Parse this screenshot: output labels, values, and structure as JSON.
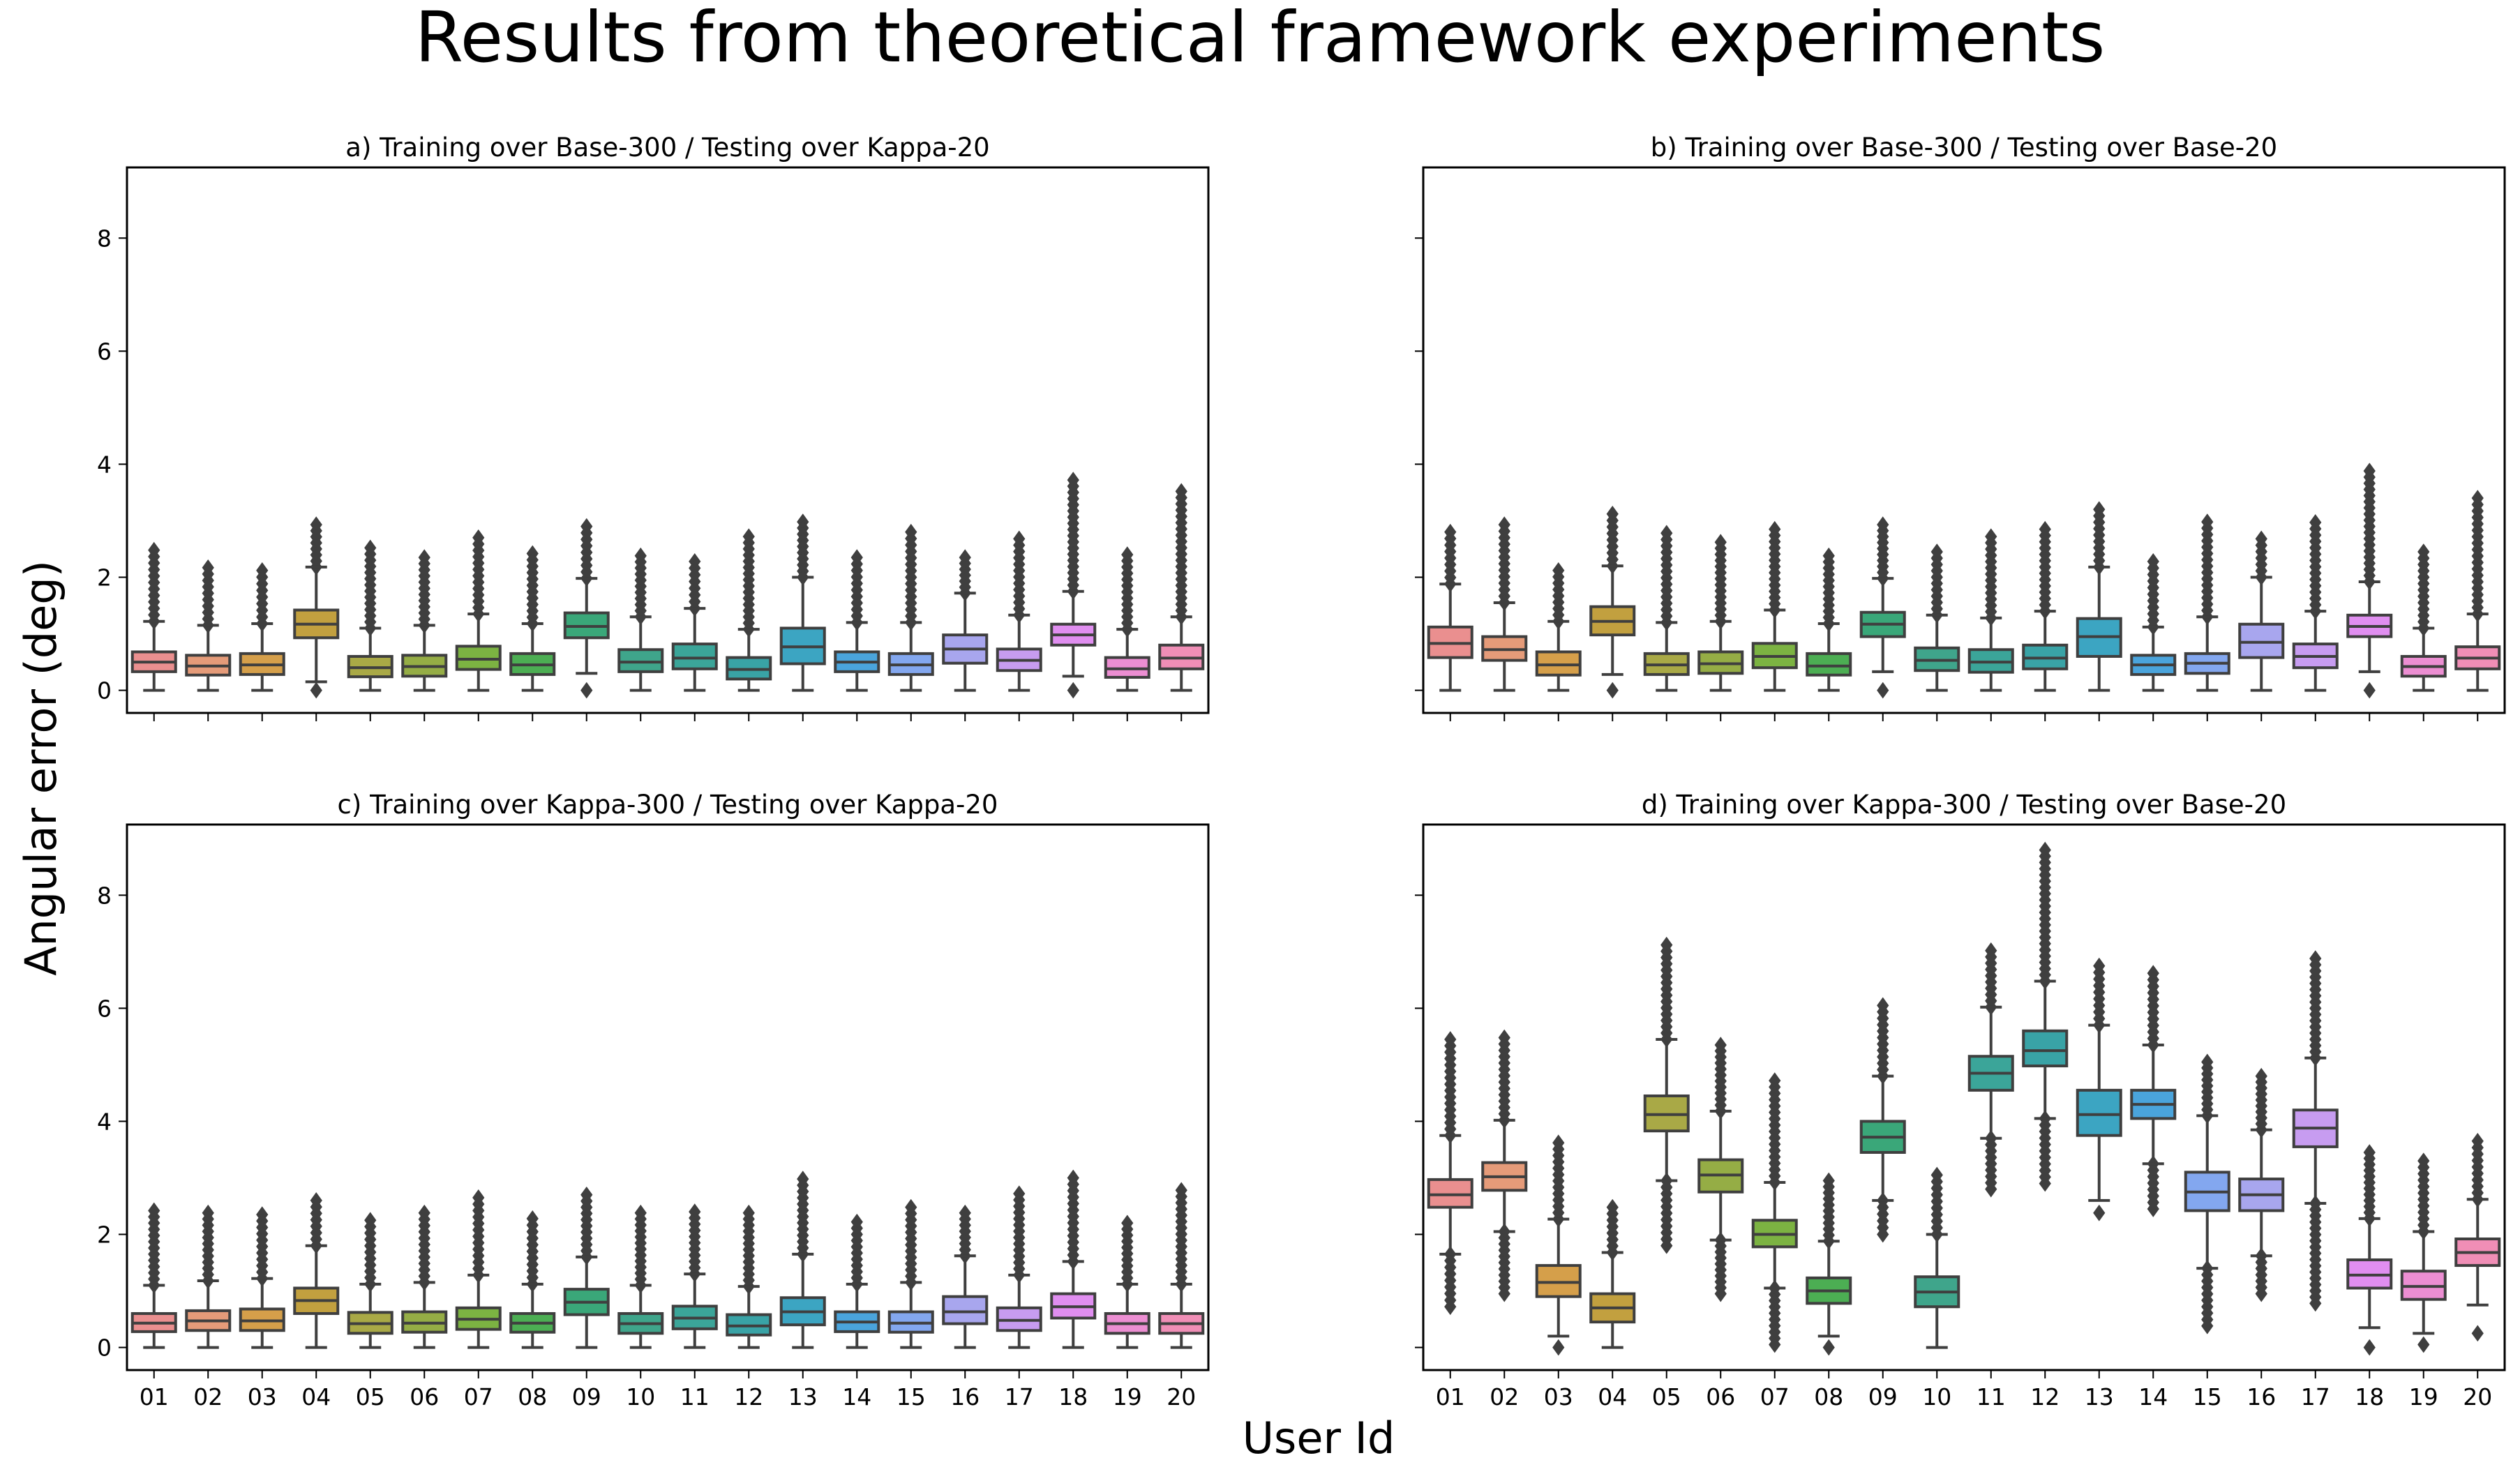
{
  "figure": {
    "title": "Results from theoretical framework experiments",
    "xlabel": "User Id",
    "ylabel": "Angular error (deg)"
  },
  "chart_data": [
    {
      "type": "box",
      "title": "a) Training over Base-300 / Testing over Kappa-20",
      "categories": [
        "01",
        "02",
        "03",
        "04",
        "05",
        "06",
        "07",
        "08",
        "09",
        "10",
        "11",
        "12",
        "13",
        "14",
        "15",
        "16",
        "17",
        "18",
        "19",
        "20"
      ],
      "ylim": [
        -0.4,
        9.25
      ],
      "yticks": [
        0,
        2,
        4,
        6,
        8
      ],
      "colors": [
        "#ea8f8f",
        "#e59b79",
        "#d59f4a",
        "#c2a03f",
        "#a9a946",
        "#95ad45",
        "#7cb342",
        "#4cae53",
        "#3aa779",
        "#3fa58b",
        "#3ba599",
        "#39a3a6",
        "#3ca5c2",
        "#4aa4dc",
        "#83a7ef",
        "#a8a6ee",
        "#c79cf0",
        "#e08ef0",
        "#ec8ed2",
        "#f08eb6"
      ],
      "boxes": [
        {
          "whislo": 0.0,
          "q1": 0.33,
          "med": 0.5,
          "q3": 0.68,
          "whishi": 1.22,
          "flier_max": 2.48
        },
        {
          "whislo": 0.0,
          "q1": 0.27,
          "med": 0.43,
          "q3": 0.62,
          "whishi": 1.15,
          "flier_max": 2.17
        },
        {
          "whislo": 0.0,
          "q1": 0.28,
          "med": 0.45,
          "q3": 0.65,
          "whishi": 1.18,
          "flier_max": 2.12
        },
        {
          "whislo": 0.15,
          "q1": 0.93,
          "med": 1.17,
          "q3": 1.42,
          "whishi": 2.18,
          "flier_max": 2.93,
          "flier_min": 0.0
        },
        {
          "whislo": 0.0,
          "q1": 0.24,
          "med": 0.4,
          "q3": 0.6,
          "whishi": 1.1,
          "flier_max": 2.52
        },
        {
          "whislo": 0.0,
          "q1": 0.25,
          "med": 0.42,
          "q3": 0.62,
          "whishi": 1.15,
          "flier_max": 2.35
        },
        {
          "whislo": 0.0,
          "q1": 0.37,
          "med": 0.55,
          "q3": 0.78,
          "whishi": 1.35,
          "flier_max": 2.7
        },
        {
          "whislo": 0.0,
          "q1": 0.28,
          "med": 0.45,
          "q3": 0.65,
          "whishi": 1.18,
          "flier_max": 2.42
        },
        {
          "whislo": 0.3,
          "q1": 0.93,
          "med": 1.13,
          "q3": 1.37,
          "whishi": 1.98,
          "flier_max": 2.9,
          "flier_min": 0.0
        },
        {
          "whislo": 0.0,
          "q1": 0.33,
          "med": 0.5,
          "q3": 0.72,
          "whishi": 1.3,
          "flier_max": 2.38
        },
        {
          "whislo": 0.0,
          "q1": 0.38,
          "med": 0.57,
          "q3": 0.82,
          "whishi": 1.45,
          "flier_max": 2.28
        },
        {
          "whislo": 0.0,
          "q1": 0.2,
          "med": 0.37,
          "q3": 0.58,
          "whishi": 1.08,
          "flier_max": 2.72
        },
        {
          "whislo": 0.0,
          "q1": 0.47,
          "med": 0.77,
          "q3": 1.1,
          "whishi": 2.0,
          "flier_max": 2.98
        },
        {
          "whislo": 0.0,
          "q1": 0.33,
          "med": 0.5,
          "q3": 0.68,
          "whishi": 1.2,
          "flier_max": 2.35
        },
        {
          "whislo": 0.0,
          "q1": 0.28,
          "med": 0.45,
          "q3": 0.65,
          "whishi": 1.2,
          "flier_max": 2.8
        },
        {
          "whislo": 0.0,
          "q1": 0.48,
          "med": 0.73,
          "q3": 0.98,
          "whishi": 1.72,
          "flier_max": 2.35
        },
        {
          "whislo": 0.0,
          "q1": 0.35,
          "med": 0.53,
          "q3": 0.73,
          "whishi": 1.33,
          "flier_max": 2.68
        },
        {
          "whislo": 0.25,
          "q1": 0.8,
          "med": 0.98,
          "q3": 1.17,
          "whishi": 1.75,
          "flier_max": 3.72,
          "flier_min": 0.0
        },
        {
          "whislo": 0.0,
          "q1": 0.23,
          "med": 0.38,
          "q3": 0.58,
          "whishi": 1.08,
          "flier_max": 2.4
        },
        {
          "whislo": 0.0,
          "q1": 0.38,
          "med": 0.57,
          "q3": 0.8,
          "whishi": 1.3,
          "flier_max": 3.52
        }
      ]
    },
    {
      "type": "box",
      "title": "b) Training over Base-300 / Testing over Base-20",
      "categories": [
        "01",
        "02",
        "03",
        "04",
        "05",
        "06",
        "07",
        "08",
        "09",
        "10",
        "11",
        "12",
        "13",
        "14",
        "15",
        "16",
        "17",
        "18",
        "19",
        "20"
      ],
      "ylim": [
        -0.4,
        9.25
      ],
      "yticks": [
        0,
        2,
        4,
        6,
        8
      ],
      "colors": [
        "#ea8f8f",
        "#e59b79",
        "#d59f4a",
        "#c2a03f",
        "#a9a946",
        "#95ad45",
        "#7cb342",
        "#4cae53",
        "#3aa779",
        "#3fa58b",
        "#3ba599",
        "#39a3a6",
        "#3ca5c2",
        "#4aa4dc",
        "#83a7ef",
        "#a8a6ee",
        "#c79cf0",
        "#e08ef0",
        "#ec8ed2",
        "#f08eb6"
      ],
      "boxes": [
        {
          "whislo": 0.0,
          "q1": 0.58,
          "med": 0.83,
          "q3": 1.12,
          "whishi": 1.88,
          "flier_max": 2.8
        },
        {
          "whislo": 0.0,
          "q1": 0.53,
          "med": 0.72,
          "q3": 0.95,
          "whishi": 1.55,
          "flier_max": 2.93
        },
        {
          "whislo": 0.0,
          "q1": 0.27,
          "med": 0.45,
          "q3": 0.68,
          "whishi": 1.22,
          "flier_max": 2.12
        },
        {
          "whislo": 0.28,
          "q1": 0.98,
          "med": 1.22,
          "q3": 1.48,
          "whishi": 2.2,
          "flier_max": 3.12,
          "flier_min": 0.0
        },
        {
          "whislo": 0.0,
          "q1": 0.28,
          "med": 0.45,
          "q3": 0.65,
          "whishi": 1.2,
          "flier_max": 2.78
        },
        {
          "whislo": 0.0,
          "q1": 0.3,
          "med": 0.47,
          "q3": 0.68,
          "whishi": 1.22,
          "flier_max": 2.62
        },
        {
          "whislo": 0.0,
          "q1": 0.4,
          "med": 0.6,
          "q3": 0.83,
          "whishi": 1.42,
          "flier_max": 2.85
        },
        {
          "whislo": 0.0,
          "q1": 0.27,
          "med": 0.43,
          "q3": 0.65,
          "whishi": 1.18,
          "flier_max": 2.38
        },
        {
          "whislo": 0.33,
          "q1": 0.95,
          "med": 1.17,
          "q3": 1.38,
          "whishi": 1.98,
          "flier_max": 2.93,
          "flier_min": 0.0
        },
        {
          "whislo": 0.0,
          "q1": 0.35,
          "med": 0.53,
          "q3": 0.75,
          "whishi": 1.33,
          "flier_max": 2.45
        },
        {
          "whislo": 0.0,
          "q1": 0.32,
          "med": 0.5,
          "q3": 0.72,
          "whishi": 1.28,
          "flier_max": 2.72
        },
        {
          "whislo": 0.0,
          "q1": 0.38,
          "med": 0.57,
          "q3": 0.8,
          "whishi": 1.4,
          "flier_max": 2.85
        },
        {
          "whislo": 0.0,
          "q1": 0.6,
          "med": 0.95,
          "q3": 1.27,
          "whishi": 2.18,
          "flier_max": 3.2
        },
        {
          "whislo": 0.0,
          "q1": 0.28,
          "med": 0.45,
          "q3": 0.62,
          "whishi": 1.12,
          "flier_max": 2.28
        },
        {
          "whislo": 0.0,
          "q1": 0.3,
          "med": 0.48,
          "q3": 0.65,
          "whishi": 1.3,
          "flier_max": 2.98
        },
        {
          "whislo": 0.0,
          "q1": 0.58,
          "med": 0.85,
          "q3": 1.17,
          "whishi": 2.0,
          "flier_max": 2.68
        },
        {
          "whislo": 0.0,
          "q1": 0.4,
          "med": 0.6,
          "q3": 0.82,
          "whishi": 1.4,
          "flier_max": 2.97
        },
        {
          "whislo": 0.33,
          "q1": 0.95,
          "med": 1.13,
          "q3": 1.33,
          "whishi": 1.92,
          "flier_max": 3.88,
          "flier_min": 0.0
        },
        {
          "whislo": 0.0,
          "q1": 0.25,
          "med": 0.42,
          "q3": 0.6,
          "whishi": 1.1,
          "flier_max": 2.45
        },
        {
          "whislo": 0.0,
          "q1": 0.38,
          "med": 0.57,
          "q3": 0.77,
          "whishi": 1.35,
          "flier_max": 3.4
        }
      ]
    },
    {
      "type": "box",
      "title": "c) Training over Kappa-300 / Testing over Kappa-20",
      "categories": [
        "01",
        "02",
        "03",
        "04",
        "05",
        "06",
        "07",
        "08",
        "09",
        "10",
        "11",
        "12",
        "13",
        "14",
        "15",
        "16",
        "17",
        "18",
        "19",
        "20"
      ],
      "ylim": [
        -0.4,
        9.25
      ],
      "yticks": [
        0,
        2,
        4,
        6,
        8
      ],
      "colors": [
        "#ea8f8f",
        "#e59b79",
        "#d59f4a",
        "#c2a03f",
        "#a9a946",
        "#95ad45",
        "#7cb342",
        "#4cae53",
        "#3aa779",
        "#3fa58b",
        "#3ba599",
        "#39a3a6",
        "#3ca5c2",
        "#4aa4dc",
        "#83a7ef",
        "#a8a6ee",
        "#c79cf0",
        "#e08ef0",
        "#ec8ed2",
        "#f08eb6"
      ],
      "boxes": [
        {
          "whislo": 0.0,
          "q1": 0.28,
          "med": 0.43,
          "q3": 0.6,
          "whishi": 1.1,
          "flier_max": 2.42
        },
        {
          "whislo": 0.0,
          "q1": 0.3,
          "med": 0.47,
          "q3": 0.65,
          "whishi": 1.18,
          "flier_max": 2.38
        },
        {
          "whislo": 0.0,
          "q1": 0.3,
          "med": 0.47,
          "q3": 0.68,
          "whishi": 1.22,
          "flier_max": 2.35
        },
        {
          "whislo": 0.0,
          "q1": 0.6,
          "med": 0.83,
          "q3": 1.05,
          "whishi": 1.8,
          "flier_max": 2.6
        },
        {
          "whislo": 0.0,
          "q1": 0.25,
          "med": 0.42,
          "q3": 0.62,
          "whishi": 1.12,
          "flier_max": 2.25
        },
        {
          "whislo": 0.0,
          "q1": 0.27,
          "med": 0.43,
          "q3": 0.63,
          "whishi": 1.15,
          "flier_max": 2.38
        },
        {
          "whislo": 0.0,
          "q1": 0.32,
          "med": 0.5,
          "q3": 0.7,
          "whishi": 1.28,
          "flier_max": 2.65
        },
        {
          "whislo": 0.0,
          "q1": 0.27,
          "med": 0.43,
          "q3": 0.6,
          "whishi": 1.12,
          "flier_max": 2.28
        },
        {
          "whislo": 0.0,
          "q1": 0.58,
          "med": 0.8,
          "q3": 1.03,
          "whishi": 1.6,
          "flier_max": 2.7
        },
        {
          "whislo": 0.0,
          "q1": 0.25,
          "med": 0.42,
          "q3": 0.6,
          "whishi": 1.1,
          "flier_max": 2.38
        },
        {
          "whislo": 0.0,
          "q1": 0.33,
          "med": 0.52,
          "q3": 0.73,
          "whishi": 1.3,
          "flier_max": 2.4
        },
        {
          "whislo": 0.0,
          "q1": 0.22,
          "med": 0.38,
          "q3": 0.58,
          "whishi": 1.08,
          "flier_max": 2.38
        },
        {
          "whislo": 0.0,
          "q1": 0.4,
          "med": 0.63,
          "q3": 0.88,
          "whishi": 1.65,
          "flier_max": 2.98
        },
        {
          "whislo": 0.0,
          "q1": 0.28,
          "med": 0.45,
          "q3": 0.63,
          "whishi": 1.12,
          "flier_max": 2.22
        },
        {
          "whislo": 0.0,
          "q1": 0.27,
          "med": 0.43,
          "q3": 0.63,
          "whishi": 1.15,
          "flier_max": 2.48
        },
        {
          "whislo": 0.0,
          "q1": 0.42,
          "med": 0.63,
          "q3": 0.9,
          "whishi": 1.62,
          "flier_max": 2.38
        },
        {
          "whislo": 0.0,
          "q1": 0.3,
          "med": 0.48,
          "q3": 0.7,
          "whishi": 1.28,
          "flier_max": 2.72
        },
        {
          "whislo": 0.0,
          "q1": 0.52,
          "med": 0.72,
          "q3": 0.95,
          "whishi": 1.52,
          "flier_max": 3.0
        },
        {
          "whislo": 0.0,
          "q1": 0.25,
          "med": 0.42,
          "q3": 0.6,
          "whishi": 1.12,
          "flier_max": 2.2
        },
        {
          "whislo": 0.0,
          "q1": 0.25,
          "med": 0.42,
          "q3": 0.6,
          "whishi": 1.12,
          "flier_max": 2.78
        }
      ]
    },
    {
      "type": "box",
      "title": "d) Training over Kappa-300 / Testing over Base-20",
      "categories": [
        "01",
        "02",
        "03",
        "04",
        "05",
        "06",
        "07",
        "08",
        "09",
        "10",
        "11",
        "12",
        "13",
        "14",
        "15",
        "16",
        "17",
        "18",
        "19",
        "20"
      ],
      "ylim": [
        -0.4,
        9.25
      ],
      "yticks": [
        0,
        2,
        4,
        6,
        8
      ],
      "colors": [
        "#ea8f8f",
        "#e59b79",
        "#d59f4a",
        "#c2a03f",
        "#a9a946",
        "#95ad45",
        "#7cb342",
        "#4cae53",
        "#3aa779",
        "#3fa58b",
        "#3ba599",
        "#39a3a6",
        "#3ca5c2",
        "#4aa4dc",
        "#83a7ef",
        "#a8a6ee",
        "#c79cf0",
        "#e08ef0",
        "#ec8ed2",
        "#f08eb6"
      ],
      "boxes": [
        {
          "whislo": 1.65,
          "q1": 2.48,
          "med": 2.7,
          "q3": 2.97,
          "whishi": 3.75,
          "flier_max": 5.45,
          "flier_min": 0.72
        },
        {
          "whislo": 2.05,
          "q1": 2.78,
          "med": 3.02,
          "q3": 3.27,
          "whishi": 4.02,
          "flier_max": 5.48,
          "flier_min": 0.95
        },
        {
          "whislo": 0.2,
          "q1": 0.9,
          "med": 1.15,
          "q3": 1.45,
          "whishi": 2.27,
          "flier_max": 3.62,
          "flier_min": 0.0
        },
        {
          "whislo": 0.0,
          "q1": 0.45,
          "med": 0.7,
          "q3": 0.95,
          "whishi": 1.68,
          "flier_max": 2.48
        },
        {
          "whislo": 2.95,
          "q1": 3.83,
          "med": 4.12,
          "q3": 4.45,
          "whishi": 5.45,
          "flier_max": 7.12,
          "flier_min": 1.8
        },
        {
          "whislo": 1.9,
          "q1": 2.75,
          "med": 3.05,
          "q3": 3.32,
          "whishi": 4.18,
          "flier_max": 5.35,
          "flier_min": 0.95
        },
        {
          "whislo": 1.05,
          "q1": 1.78,
          "med": 2.0,
          "q3": 2.25,
          "whishi": 2.92,
          "flier_max": 4.72,
          "flier_min": 0.05
        },
        {
          "whislo": 0.2,
          "q1": 0.78,
          "med": 1.0,
          "q3": 1.23,
          "whishi": 1.88,
          "flier_max": 2.95,
          "flier_min": 0.0
        },
        {
          "whislo": 2.6,
          "q1": 3.45,
          "med": 3.72,
          "q3": 4.0,
          "whishi": 4.8,
          "flier_max": 6.05,
          "flier_min": 2.0
        },
        {
          "whislo": 0.0,
          "q1": 0.72,
          "med": 0.98,
          "q3": 1.25,
          "whishi": 2.0,
          "flier_max": 3.05
        },
        {
          "whislo": 3.7,
          "q1": 4.55,
          "med": 4.85,
          "q3": 5.15,
          "whishi": 6.02,
          "flier_max": 7.02,
          "flier_min": 2.8
        },
        {
          "whislo": 4.05,
          "q1": 4.98,
          "med": 5.25,
          "q3": 5.6,
          "whishi": 6.48,
          "flier_max": 8.8,
          "flier_min": 2.9
        },
        {
          "whislo": 2.6,
          "q1": 3.75,
          "med": 4.12,
          "q3": 4.55,
          "whishi": 5.7,
          "flier_max": 6.75,
          "flier_min": 2.38
        },
        {
          "whislo": 3.25,
          "q1": 4.05,
          "med": 4.3,
          "q3": 4.55,
          "whishi": 5.35,
          "flier_max": 6.62,
          "flier_min": 2.45
        },
        {
          "whislo": 1.4,
          "q1": 2.42,
          "med": 2.75,
          "q3": 3.1,
          "whishi": 4.1,
          "flier_max": 5.05,
          "flier_min": 0.38
        },
        {
          "whislo": 1.62,
          "q1": 2.42,
          "med": 2.7,
          "q3": 2.98,
          "whishi": 3.85,
          "flier_max": 4.8,
          "flier_min": 0.95
        },
        {
          "whislo": 2.55,
          "q1": 3.55,
          "med": 3.88,
          "q3": 4.2,
          "whishi": 5.12,
          "flier_max": 6.88,
          "flier_min": 0.78
        },
        {
          "whislo": 0.35,
          "q1": 1.05,
          "med": 1.28,
          "q3": 1.55,
          "whishi": 2.28,
          "flier_max": 3.45,
          "flier_min": 0.0
        },
        {
          "whislo": 0.25,
          "q1": 0.85,
          "med": 1.08,
          "q3": 1.35,
          "whishi": 2.05,
          "flier_max": 3.3,
          "flier_min": 0.05
        },
        {
          "whislo": 0.75,
          "q1": 1.45,
          "med": 1.68,
          "q3": 1.92,
          "whishi": 2.62,
          "flier_max": 3.65,
          "flier_min": 0.25
        }
      ]
    }
  ]
}
